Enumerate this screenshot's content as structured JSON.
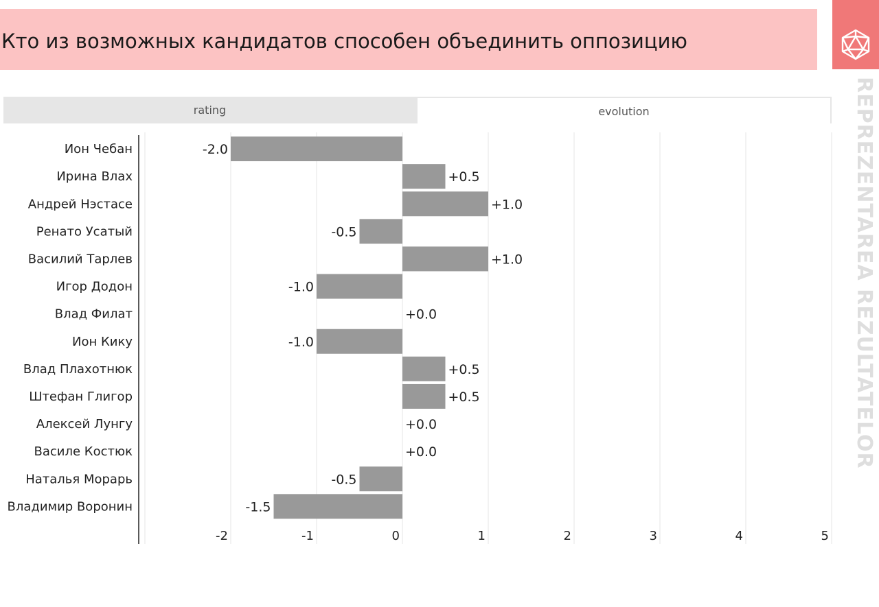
{
  "header": {
    "title": "Кто из возможных кандидатов способен объединить оппозицию"
  },
  "brand": {
    "vertical_text": "REPREZENTAREA REZULTATELOR",
    "logo_icon": "polyhedron-icon",
    "logo_color": "#f07878",
    "title_bg": "#fcc3c3"
  },
  "tabs": [
    {
      "label": "rating",
      "selected": false
    },
    {
      "label": "evolution",
      "selected": true
    }
  ],
  "chart_data": {
    "type": "bar",
    "orientation": "horizontal",
    "categories": [
      "Ион Чебан",
      "Ирина Влах",
      "Андрей Нэстасе",
      "Ренато Усатый",
      "Василий Тарлев",
      "Игор Додон",
      "Влад Филат",
      "Ион Кику",
      "Влад Плахотнюк",
      "Штефан Глигор",
      "Алексей Лунгу",
      "Василе Костюк",
      "Наталья Морарь",
      "Владимир Воронин"
    ],
    "values": [
      -2.0,
      0.5,
      1.0,
      -0.5,
      1.0,
      -1.0,
      0.0,
      -1.0,
      0.5,
      0.5,
      0.0,
      0.0,
      -0.5,
      -1.5
    ],
    "value_labels": [
      "-2.0",
      "+0.5",
      "+1.0",
      "-0.5",
      "+1.0",
      "-1.0",
      "+0.0",
      "-1.0",
      "+0.5",
      "+0.5",
      "+0.0",
      "+0.0",
      "-0.5",
      "-1.5"
    ],
    "xlim": [
      -3,
      5
    ],
    "xticks": [
      -2,
      -1,
      0,
      1,
      2,
      3,
      4,
      5
    ],
    "xtick_labels": [
      "-2",
      "-1",
      "0",
      "1",
      "2",
      "3",
      "4",
      "5"
    ],
    "grid": true,
    "bar_color": "#999999"
  }
}
